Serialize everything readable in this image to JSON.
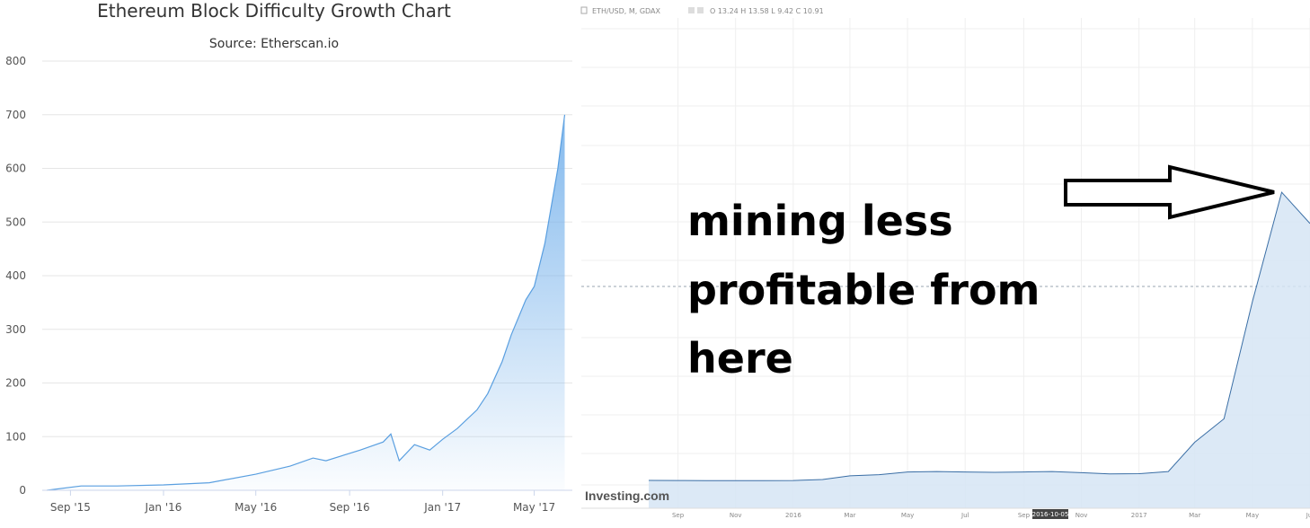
{
  "chart_data": [
    {
      "type": "area",
      "title": "Ethereum Block Difficulty Growth Chart",
      "subtitle": "Source: Etherscan.io",
      "xlabel": "",
      "ylabel": "",
      "ylim": [
        0,
        800
      ],
      "yticks": [
        "0",
        "100",
        "200",
        "300",
        "400",
        "500",
        "600",
        "700",
        "800"
      ],
      "xtick_labels": [
        "Sep '15",
        "Jan '16",
        "May '16",
        "Sep '16",
        "Jan '17",
        "May '17"
      ],
      "grid": true,
      "color": "#7cb5ec",
      "series": [
        {
          "x": [
            "2015-08-01",
            "2015-09-15",
            "2015-11-01",
            "2016-01-01",
            "2016-03-01",
            "2016-05-01",
            "2016-06-15",
            "2016-07-15",
            "2016-08-01",
            "2016-09-15",
            "2016-10-15",
            "2016-10-25",
            "2016-11-05",
            "2016-11-25",
            "2016-12-15",
            "2017-01-01",
            "2017-01-20",
            "2017-02-15",
            "2017-03-01",
            "2017-03-20",
            "2017-04-01",
            "2017-04-20",
            "2017-05-01",
            "2017-05-15",
            "2017-06-01",
            "2017-06-10"
          ],
          "y": [
            0,
            8,
            8,
            10,
            14,
            30,
            45,
            60,
            55,
            75,
            90,
            105,
            55,
            85,
            75,
            95,
            115,
            150,
            180,
            240,
            290,
            355,
            380,
            460,
            600,
            700
          ]
        }
      ]
    },
    {
      "type": "area",
      "header": "ETH/USD, M, GDAX",
      "header_values": "O 13.24 H 13.58 L 9.42 C 10.91",
      "watermark": "Investing.com",
      "date_badge": "2016-10-05",
      "xtick_labels": [
        "Sep",
        "Nov",
        "2016",
        "Mar",
        "May",
        "Jul",
        "Sep",
        "Nov",
        "2017",
        "Mar",
        "May",
        "Jul"
      ],
      "grid": true,
      "color": "#3a7bbf",
      "series": [
        {
          "x": [
            "2015-08",
            "2015-09",
            "2015-10",
            "2015-11",
            "2015-12",
            "2016-01",
            "2016-02",
            "2016-03",
            "2016-04",
            "2016-05",
            "2016-06",
            "2016-07",
            "2016-08",
            "2016-09",
            "2016-10",
            "2016-11",
            "2016-12",
            "2017-01",
            "2017-02",
            "2017-03",
            "2017-04",
            "2017-05",
            "2017-06",
            "2017-07"
          ],
          "y": [
            1.2,
            1.0,
            0.9,
            0.9,
            0.9,
            1.0,
            2.3,
            7.0,
            8.5,
            12.0,
            12.5,
            12.0,
            11.5,
            12.0,
            12.5,
            11.0,
            9.5,
            9.8,
            12.5,
            50,
            80,
            230,
            370,
            330
          ]
        }
      ],
      "annotation": {
        "lines": [
          "mining less",
          "profitable from",
          "here"
        ]
      }
    }
  ]
}
